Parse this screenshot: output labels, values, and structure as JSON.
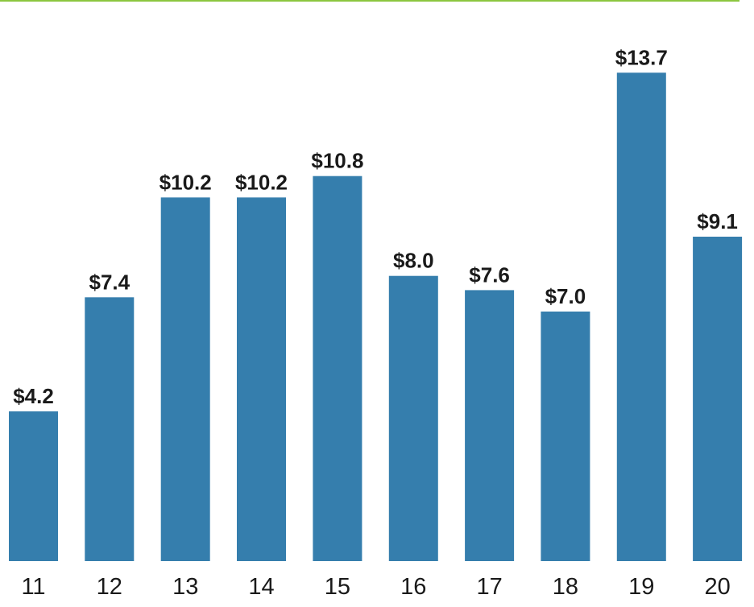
{
  "chart_data": {
    "type": "bar",
    "title": "",
    "xlabel": "",
    "ylabel": "",
    "categories": [
      "11",
      "12",
      "13",
      "14",
      "15",
      "16",
      "17",
      "18",
      "19",
      "20"
    ],
    "values": [
      4.2,
      7.4,
      10.2,
      10.2,
      10.8,
      8.0,
      7.6,
      7.0,
      13.7,
      9.1
    ],
    "value_labels": [
      "$4.2",
      "$7.4",
      "$10.2",
      "$10.2",
      "$10.8",
      "$8.0",
      "$7.6",
      "$7.0",
      "$13.7",
      "$9.1"
    ],
    "ylim": [
      0,
      14
    ],
    "grid": false,
    "legend": "none"
  },
  "colors": {
    "bar": "#357ead",
    "top_rule": "#8cc63f",
    "text": "#1a1a1a"
  }
}
